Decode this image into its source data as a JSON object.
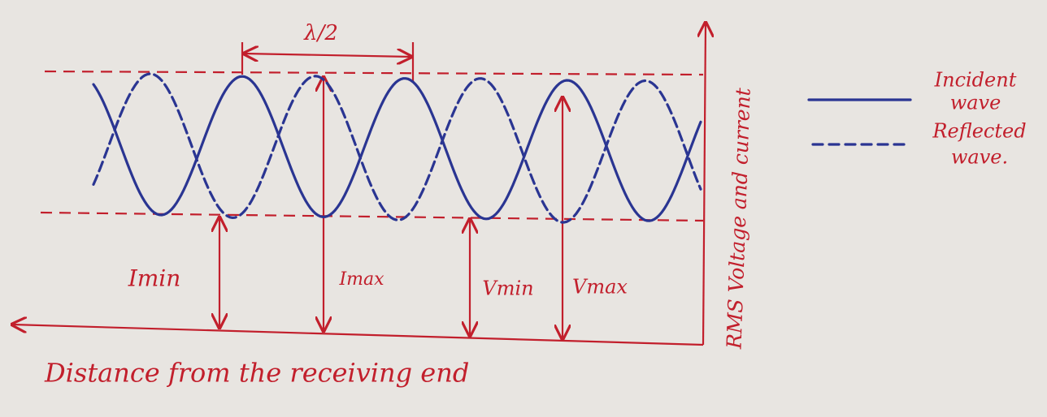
{
  "diagram": {
    "wavelength_label": "λ/2",
    "markers": [
      "Imin",
      "Imax",
      "Vmin",
      "Vmax"
    ],
    "y_axis_label": "RMS Voltage and current",
    "x_axis_label": "Distance from the receiving end",
    "legend": [
      {
        "lines": [
          "Incident",
          "wave"
        ]
      },
      {
        "lines": [
          "Reflected",
          "wave."
        ]
      }
    ]
  }
}
